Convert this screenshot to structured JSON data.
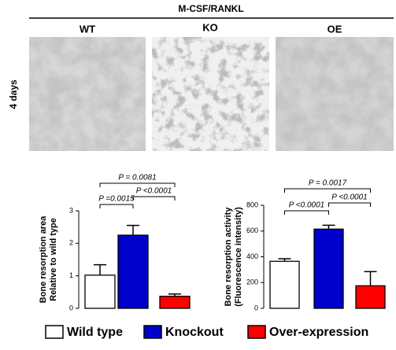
{
  "figure": {
    "header": "M-CSF/RANKL",
    "panels": [
      "WT",
      "KO",
      "OE"
    ],
    "row_label": "4 days"
  },
  "groups": [
    {
      "name": "Wild type",
      "color": "#ffffff"
    },
    {
      "name": "Knockout",
      "color": "#0000cc"
    },
    {
      "name": "Over-expression",
      "color": "#ff0000"
    }
  ],
  "chart_data": [
    {
      "type": "bar",
      "ylabel": [
        "Bone resorption area",
        "Relative to wild type"
      ],
      "values": [
        1.02,
        2.25,
        0.37
      ],
      "errors": [
        0.32,
        0.3,
        0.07
      ],
      "ylim": [
        0,
        3
      ],
      "yticks": [
        0,
        1,
        2,
        3
      ],
      "annotations": [
        "P = 0.0081",
        "P =0.0015",
        "P <0.0001"
      ]
    },
    {
      "type": "bar",
      "ylabel": [
        "Bone resorption activity",
        "(Fluorescence intensity)"
      ],
      "values": [
        365,
        615,
        175
      ],
      "errors": [
        20,
        30,
        110
      ],
      "ylim": [
        0,
        800
      ],
      "yticks": [
        0,
        200,
        400,
        600,
        800
      ],
      "annotations": [
        "P = 0.0017",
        "P <0.0001",
        "P <0.0001"
      ]
    }
  ]
}
